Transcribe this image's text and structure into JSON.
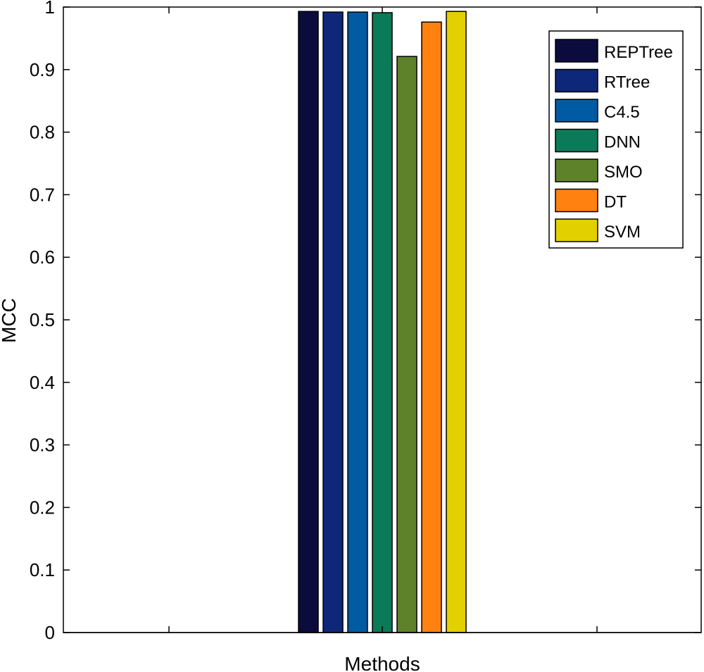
{
  "chart_data": {
    "type": "bar",
    "title": "",
    "xlabel": "Methods",
    "ylabel": "MCC",
    "ylim": [
      0,
      1
    ],
    "yticks": [
      "0",
      "0.1",
      "0.2",
      "0.3",
      "0.4",
      "0.5",
      "0.6",
      "0.7",
      "0.8",
      "0.9",
      "1"
    ],
    "grid": false,
    "legend_position": "top-right",
    "series": [
      {
        "name": "REPTree",
        "value": 0.993,
        "color": "#0b0c3d"
      },
      {
        "name": "RTree",
        "value": 0.992,
        "color": "#0d2878"
      },
      {
        "name": "C4.5",
        "value": 0.992,
        "color": "#005ba3"
      },
      {
        "name": "DNN",
        "value": 0.991,
        "color": "#0b7a58"
      },
      {
        "name": "SMO",
        "value": 0.921,
        "color": "#5e8229"
      },
      {
        "name": "DT",
        "value": 0.976,
        "color": "#ff8210"
      },
      {
        "name": "SVM",
        "value": 0.993,
        "color": "#e3d000"
      }
    ]
  }
}
